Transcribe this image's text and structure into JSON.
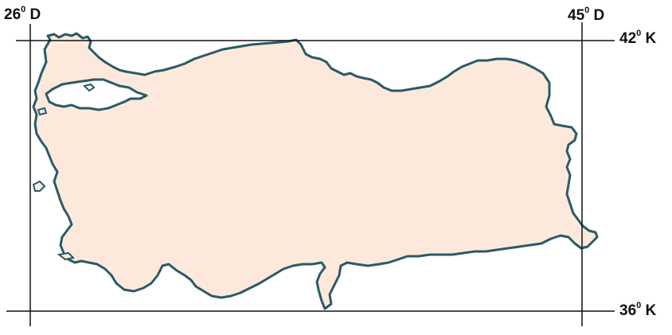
{
  "map": {
    "fill_color": "#fce9dc",
    "border_color": "#2b5a67",
    "grid_color": "#111111",
    "longitude_labels": {
      "west": {
        "value": "26",
        "degree": "0",
        "suffix": " D"
      },
      "east": {
        "value": "45",
        "degree": "0",
        "suffix": " D"
      }
    },
    "latitude_labels": {
      "north": {
        "value": "42",
        "degree": "0",
        "suffix": " K"
      },
      "south": {
        "value": "36",
        "degree": "0",
        "suffix": " K"
      }
    }
  }
}
